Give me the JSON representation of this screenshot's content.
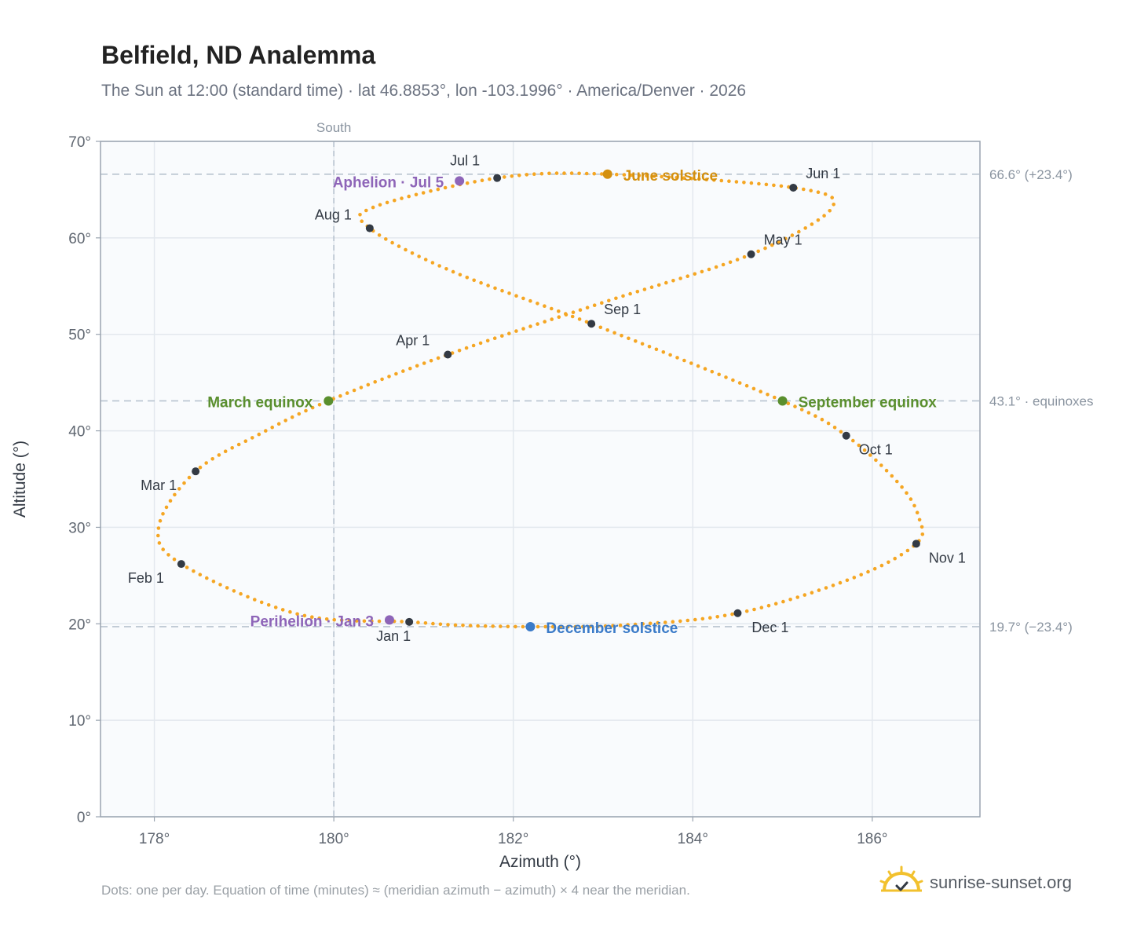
{
  "header": {
    "title": "Belfield, ND Analemma",
    "subtitle": "The Sun at 12:00 (standard time) · lat 46.8853°, lon -103.1996° · America/Denver · 2026"
  },
  "footer": {
    "note": "Dots: one per day. Equation of time (minutes) ≈ (meridian azimuth − azimuth) × 4 near the meridian.",
    "brand": "sunrise-sunset.org"
  },
  "colors": {
    "curve": "#f5a623",
    "month_dot": "#333a44",
    "equinox": "#5a8f2e",
    "june_solstice": "#d4900f",
    "december_solstice": "#3b7bc8",
    "apsis": "#8e65b8",
    "grid": "#e3e8ee",
    "plot_bg": "#f9fbfd",
    "ref_line": "#b8c3cf"
  },
  "chart_data": {
    "type": "scatter",
    "title": "Belfield, ND Analemma",
    "xlabel": "Azimuth (°)",
    "ylabel": "Altitude (°)",
    "xlim": [
      177.4,
      187.2
    ],
    "ylim": [
      0,
      70
    ],
    "x_ticks": [
      "178°",
      "180°",
      "182°",
      "184°",
      "186°"
    ],
    "x_tick_values": [
      178,
      180,
      182,
      184,
      186
    ],
    "y_ticks": [
      "0°",
      "10°",
      "20°",
      "30°",
      "40°",
      "50°",
      "60°",
      "70°"
    ],
    "y_tick_values": [
      0,
      10,
      20,
      30,
      40,
      50,
      60,
      70
    ],
    "grid": true,
    "meridian": {
      "label": "South",
      "x": 180
    },
    "reference_lines": [
      {
        "y": 66.6,
        "label": "66.6° (+23.4°)"
      },
      {
        "y": 43.1,
        "label": "43.1° · equinoxes"
      },
      {
        "y": 19.7,
        "label": "19.7° (−23.4°)"
      }
    ],
    "curve_note": "Dots: one per day",
    "month_markers": [
      {
        "label": "Jan 1",
        "x": 180.84,
        "y": 20.2
      },
      {
        "label": "Feb 1",
        "x": 178.3,
        "y": 26.2
      },
      {
        "label": "Mar 1",
        "x": 178.46,
        "y": 35.8
      },
      {
        "label": "Apr 1",
        "x": 181.27,
        "y": 47.9
      },
      {
        "label": "May 1",
        "x": 184.65,
        "y": 58.3
      },
      {
        "label": "Jun 1",
        "x": 185.12,
        "y": 65.2
      },
      {
        "label": "Jul 1",
        "x": 181.82,
        "y": 66.2
      },
      {
        "label": "Aug 1",
        "x": 180.4,
        "y": 61.0
      },
      {
        "label": "Sep 1",
        "x": 182.87,
        "y": 51.1
      },
      {
        "label": "Oct 1",
        "x": 185.71,
        "y": 39.5
      },
      {
        "label": "Nov 1",
        "x": 186.49,
        "y": 28.3
      },
      {
        "label": "Dec 1",
        "x": 184.5,
        "y": 21.1
      }
    ],
    "events": [
      {
        "label": "March equinox",
        "x": 179.94,
        "y": 43.1,
        "color_key": "equinox",
        "side": "left"
      },
      {
        "label": "June solstice",
        "x": 183.05,
        "y": 66.6,
        "color_key": "june_solstice",
        "side": "right"
      },
      {
        "label": "September equinox",
        "x": 185.0,
        "y": 43.1,
        "color_key": "equinox",
        "side": "right"
      },
      {
        "label": "December solstice",
        "x": 182.19,
        "y": 19.7,
        "color_key": "december_solstice",
        "side": "right"
      },
      {
        "label": "Aphelion · Jul 5",
        "x": 181.4,
        "y": 65.9,
        "color_key": "apsis",
        "side": "left"
      },
      {
        "label": "Perihelion · Jan 3",
        "x": 180.62,
        "y": 20.4,
        "color_key": "apsis",
        "side": "left"
      }
    ]
  }
}
